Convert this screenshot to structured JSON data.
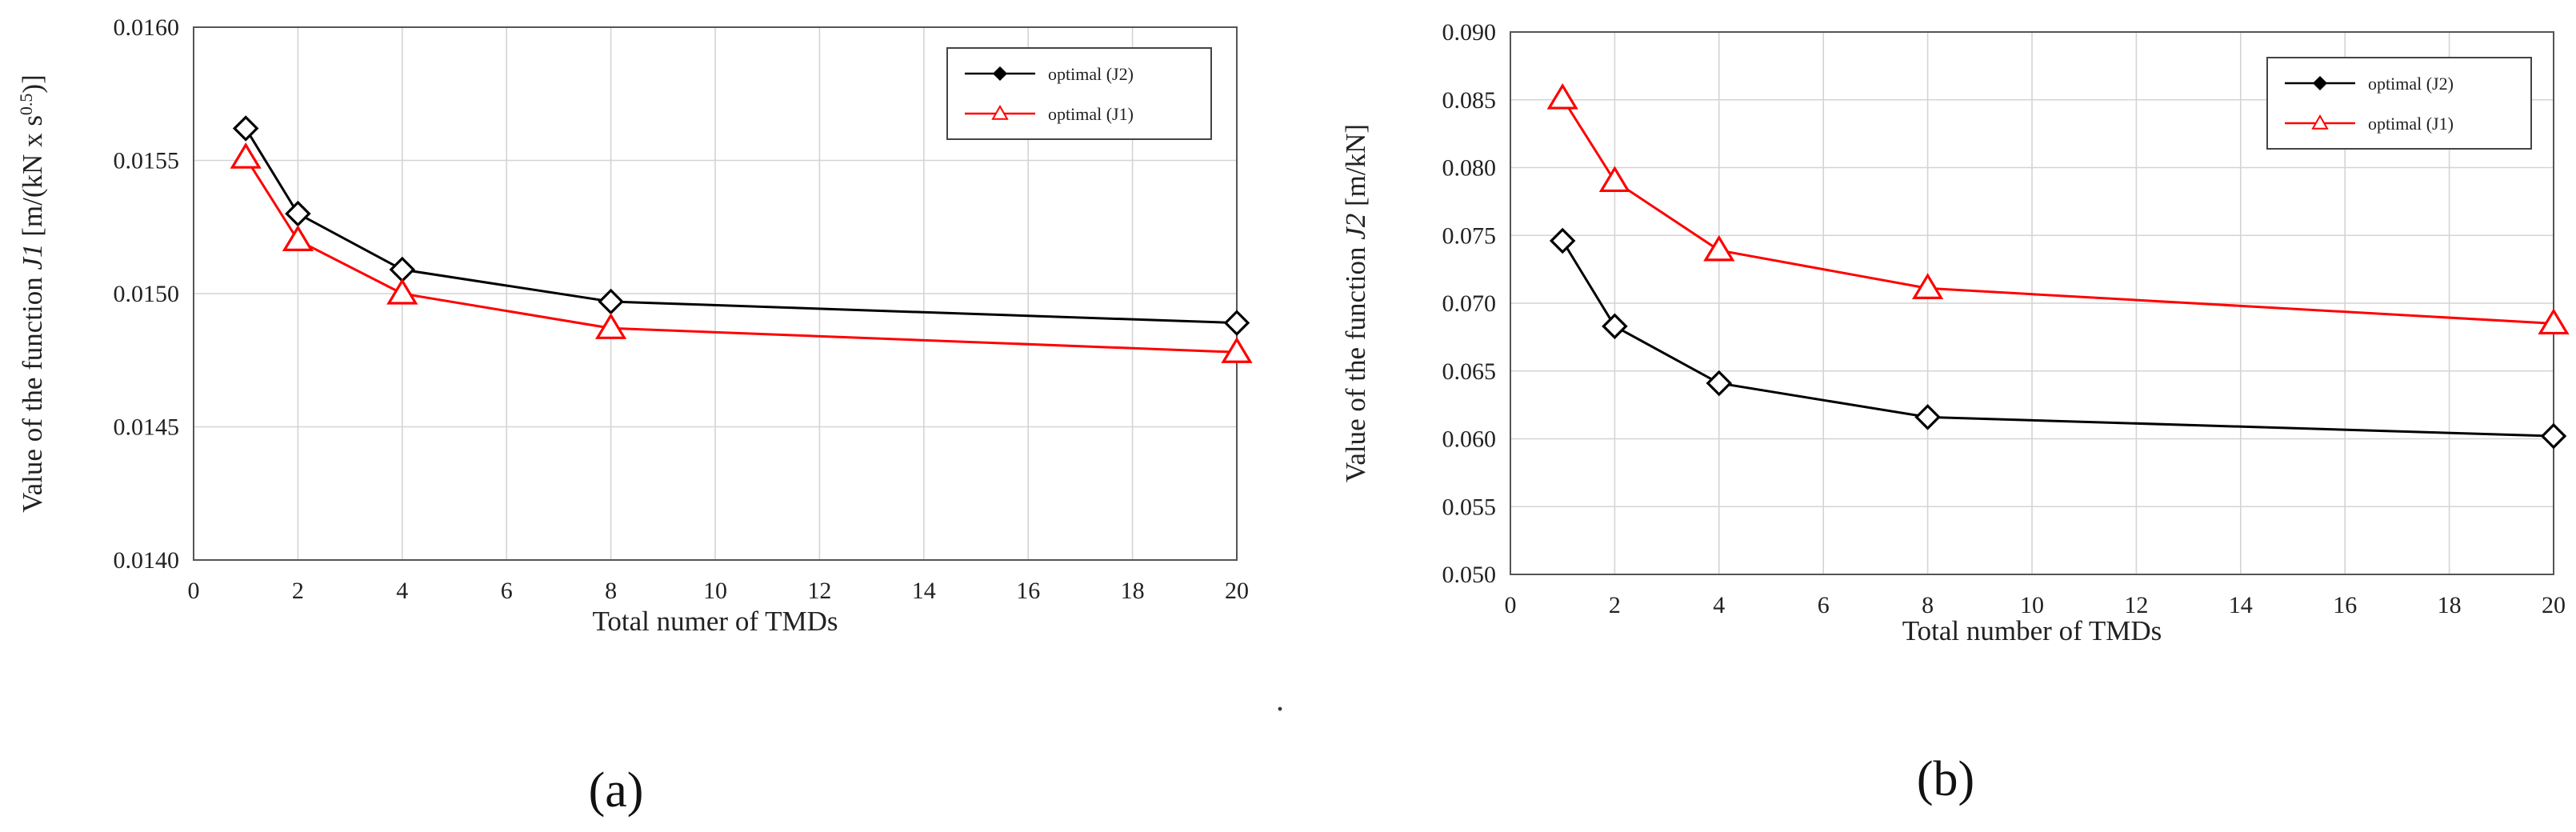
{
  "chart_data": [
    {
      "type": "line",
      "panel_label": "(a)",
      "xlabel": "Total numer of  TMDs",
      "ylabel_prefix": "Value of the function ",
      "ylabel_func": "J1",
      "ylabel_unit_pre": " [m/(kN x s",
      "ylabel_sup": "0.5",
      "ylabel_unit_post": ")]",
      "xlim": [
        0,
        20
      ],
      "ylim": [
        0.014,
        0.016
      ],
      "xticks": [
        "0",
        "2",
        "4",
        "6",
        "8",
        "10",
        "12",
        "14",
        "16",
        "18",
        "20"
      ],
      "yticks": [
        "0.0140",
        "0.0145",
        "0.0150",
        "0.0155",
        "0.0160"
      ],
      "grid": true,
      "legend_position": "top-right",
      "series": [
        {
          "name": "optimal (J2)",
          "color": "#000000",
          "marker": "diamond",
          "x": [
            1,
            2,
            4,
            8,
            20
          ],
          "y": [
            0.01562,
            0.0153,
            0.01509,
            0.01497,
            0.01489
          ]
        },
        {
          "name": "optimal (J1)",
          "color": "#ff0000",
          "marker": "triangle",
          "x": [
            1,
            2,
            4,
            8,
            20
          ],
          "y": [
            0.01551,
            0.0152,
            0.015,
            0.01487,
            0.01478
          ]
        }
      ]
    },
    {
      "type": "line",
      "panel_label": "(b)",
      "xlabel": "Total number of TMDs",
      "ylabel_prefix": "Value of the function ",
      "ylabel_func": "J2",
      "ylabel_unit_pre": " [m/kN]",
      "ylabel_sup": "",
      "ylabel_unit_post": "",
      "xlim": [
        0,
        20
      ],
      "ylim": [
        0.05,
        0.09
      ],
      "xticks": [
        "0",
        "2",
        "4",
        "6",
        "8",
        "10",
        "12",
        "14",
        "16",
        "18",
        "20"
      ],
      "yticks": [
        "0.050",
        "0.055",
        "0.060",
        "0.065",
        "0.070",
        "0.075",
        "0.080",
        "0.085",
        "0.090"
      ],
      "grid": true,
      "legend_position": "top-right",
      "series": [
        {
          "name": "optimal (J2)",
          "color": "#000000",
          "marker": "diamond",
          "x": [
            1,
            2,
            4,
            8,
            20
          ],
          "y": [
            0.0746,
            0.0683,
            0.0641,
            0.0616,
            0.0602
          ]
        },
        {
          "name": "optimal (J1)",
          "color": "#ff0000",
          "marker": "triangle",
          "x": [
            1,
            2,
            4,
            8,
            20
          ],
          "y": [
            0.0851,
            0.079,
            0.0739,
            0.0711,
            0.0685
          ]
        }
      ]
    }
  ],
  "separator_mark": "."
}
